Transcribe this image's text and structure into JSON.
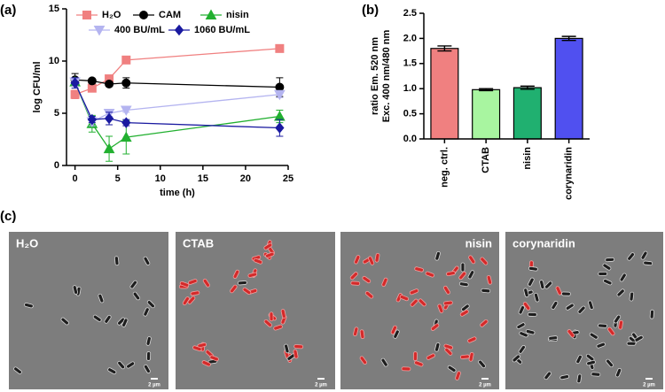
{
  "panel_labels": [
    "(a)",
    "(b)",
    "(c)"
  ],
  "chart_data": [
    {
      "type": "line",
      "xlabel": "time (h)",
      "ylabel": "log CFU/ml",
      "x": [
        0,
        2,
        4,
        6,
        24
      ],
      "xlim": [
        -1,
        25
      ],
      "xticks": [
        0,
        5,
        10,
        15,
        20,
        25
      ],
      "ylim": [
        0,
        15
      ],
      "yticks": [
        0,
        5,
        10,
        15
      ],
      "series": [
        {
          "name": "H₂O",
          "color": "#f08080",
          "marker": "square",
          "values": [
            6.8,
            7.4,
            8.3,
            10.1,
            11.2
          ],
          "errors": [
            0.4,
            0.3,
            0.1,
            0.1,
            0.1
          ]
        },
        {
          "name": "CAM",
          "color": "#000000",
          "marker": "circle",
          "values": [
            8.2,
            8.1,
            7.8,
            7.9,
            7.5
          ],
          "errors": [
            0.6,
            0.2,
            0.2,
            0.5,
            0.9
          ]
        },
        {
          "name": "nisin",
          "color": "#22b030",
          "marker": "triangle",
          "values": [
            8.0,
            4.0,
            1.6,
            2.7,
            4.7
          ],
          "errors": [
            0.3,
            0.8,
            1.2,
            1.6,
            0.6
          ]
        },
        {
          "name": "400 BU/mL",
          "color": "#b4b4f0",
          "marker": "triangle-down",
          "values": [
            8.0,
            4.2,
            5.0,
            5.3,
            6.8
          ],
          "errors": [
            0.4,
            0.4,
            0.3,
            0.2,
            0.3
          ]
        },
        {
          "name": "1060 BU/mL",
          "color": "#1a1aa0",
          "marker": "diamond",
          "values": [
            7.9,
            4.4,
            4.5,
            4.1,
            3.6
          ],
          "errors": [
            0.5,
            0.3,
            0.6,
            0.3,
            0.8
          ]
        }
      ]
    },
    {
      "type": "bar",
      "ylabel": [
        "ratio Em. 520 nm",
        "Exc. 400 nm/480 nm"
      ],
      "categories": [
        "neg. ctrl.",
        "CTAB",
        "nisin",
        "corynaridin"
      ],
      "values": [
        1.8,
        0.98,
        1.02,
        2.0
      ],
      "errors": [
        0.05,
        0.02,
        0.03,
        0.04
      ],
      "colors": [
        "#f08080",
        "#a8f5a0",
        "#20b070",
        "#5050f0"
      ],
      "ylim": [
        0,
        2.5
      ],
      "yticks": [
        {
          "value": 0,
          "label": "0.0"
        },
        0.5,
        {
          "value": 1,
          "label": "1.0"
        },
        1.5,
        {
          "value": 2,
          "label": "2.0"
        },
        2.5
      ]
    }
  ],
  "micrographs": [
    {
      "label": "H₂O",
      "scale_bar": "2 µm"
    },
    {
      "label": "CTAB",
      "scale_bar": "2 µm"
    },
    {
      "label": "nisin",
      "scale_bar": "2 µm"
    },
    {
      "label": "corynaridin",
      "scale_bar": "2 µm"
    }
  ]
}
